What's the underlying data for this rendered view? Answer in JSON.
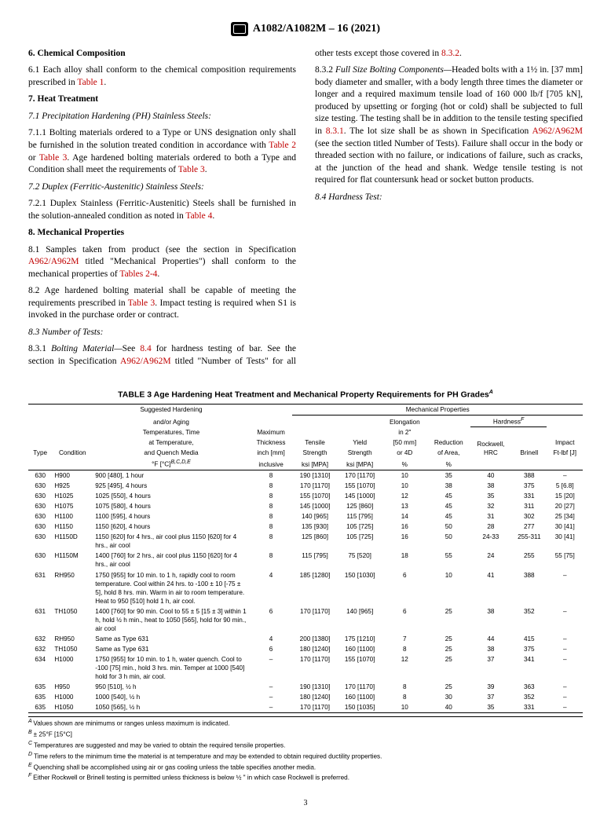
{
  "header": {
    "spec": "A1082/A1082M – 16 (2021)"
  },
  "sec6": {
    "title": "6.  Chemical Composition",
    "p1a": "6.1  Each alloy shall conform to the chemical composition requirements prescribed in ",
    "p1link": "Table 1",
    "p1b": "."
  },
  "sec7": {
    "title": "7.  Heat Treatment",
    "s71t": "7.1  Precipitation Hardening (PH) Stainless Steels:",
    "s711a": "7.1.1  Bolting materials ordered to a Type or UNS designation only shall be furnished in the solution treated condition in accordance with ",
    "s711l1": "Table 2",
    "s711m": " or ",
    "s711l2": "Table 3",
    "s711b": ". Age hardened bolting materials ordered to both a Type and Condition shall meet the requirements of ",
    "s711l3": "Table 3",
    "s711c": ".",
    "s72t": "7.2  Duplex (Ferritic-Austenitic) Stainless Steels:",
    "s721a": "7.2.1  Duplex Stainless (Ferritic-Austenitic) Steels shall be furnished in the solution-annealed condition as noted in ",
    "s721l": "Table 4",
    "s721b": "."
  },
  "sec8": {
    "title": "8.  Mechanical Properties",
    "s81a": "8.1  Samples taken from product (see the section in Specification ",
    "s81l1": "A962/A962M",
    "s81b": " titled \"Mechanical Properties\") shall conform to the mechanical properties of ",
    "s81l2": "Tables 2-4",
    "s81c": ".",
    "s82a": "8.2  Age hardened bolting material shall be capable of meeting the requirements prescribed in ",
    "s82l": "Table 3",
    "s82b": ". Impact testing is required when S1 is invoked in the purchase order or contract.",
    "s83t": "8.3  Number of Tests:",
    "s831a": "8.3.1  ",
    "s831i": "Bolting Material—",
    "s831b": "See ",
    "s831l1": "8.4",
    "s831c": " for hardness testing of bar. See the section in Specification ",
    "s831l2": "A962/A962M",
    "s831d": " titled \"Number of Tests\" for all other tests except those covered in ",
    "s831l3": "8.3.2",
    "s831e": ".",
    "s832a": "8.3.2  ",
    "s832i": "Full Size Bolting Components—",
    "s832b": "Headed bolts with a 1½ in. [37 mm] body diameter and smaller, with a body length three times the diameter or longer and a required maximum tensile load of 160 000 lb/f [705 kN], produced by upsetting or forging (hot or cold) shall be subjected to full size testing. The testing shall be in addition to the tensile testing specified in ",
    "s832l1": "8.3.1",
    "s832c": ". The lot size shall be as shown in Specification ",
    "s832l2": "A962/A962M",
    "s832d": " (see the section titled Number of Tests). Failure shall occur in the body or threaded section with no failure, or indications of failure, such as cracks, at the junction of the head and shank. Wedge tensile testing is not required for flat countersunk head or socket button products.",
    "s84t": "8.4  Hardness Test:"
  },
  "table": {
    "title": "TABLE 3 Age Hardening Heat Treatment and Mechanical Property Requirements for PH Grades",
    "titlesup": "A",
    "head": {
      "type": "Type",
      "cond": "Condition",
      "sugg1": "Suggested Hardening",
      "sugg2": "and/or Aging",
      "sugg3": "Temperatures, Time",
      "sugg4": "at Temperature,",
      "sugg5": "and Quench Media",
      "sugg6": "°F [°C]",
      "suggsup": "B,C,D,E",
      "thk1": "Maximum",
      "thk2": "Thickness",
      "thk3": "inch [mm]",
      "thk4": "inclusive",
      "mp": "Mechanical Properties",
      "ts1": "Tensile",
      "ts2": "Strength",
      "ts3": "ksi [MPA]",
      "ys1": "Yield",
      "ys2": "Strength",
      "ys3": "ksi [MPA]",
      "el1": "Elongation",
      "el2": "in 2\"",
      "el3": "[50 mm]",
      "el4": "or 4D",
      "el5": "%",
      "ra1": "Reduction",
      "ra2": "of Area,",
      "ra3": "%",
      "hd": "Hardness",
      "hdsup": "F",
      "hrc1": "Rockwell,",
      "hrc2": "HRC",
      "brn": "Brinell",
      "imp1": "Impact",
      "imp2": "Ft-lbf [J]"
    },
    "rows": [
      {
        "t": "630",
        "c": "H900",
        "p": "900 [480], 1 hour",
        "th": "8",
        "ts": "190 [1310]",
        "ys": "170 [1170]",
        "el": "10",
        "ra": "35",
        "hr": "40",
        "br": "388",
        "im": "–"
      },
      {
        "t": "630",
        "c": "H925",
        "p": "925 [495], 4 hours",
        "th": "8",
        "ts": "170 [1170]",
        "ys": "155 [1070]",
        "el": "10",
        "ra": "38",
        "hr": "38",
        "br": "375",
        "im": "5 [6.8]"
      },
      {
        "t": "630",
        "c": "H1025",
        "p": "1025 [550], 4 hours",
        "th": "8",
        "ts": "155 [1070]",
        "ys": "145 [1000]",
        "el": "12",
        "ra": "45",
        "hr": "35",
        "br": "331",
        "im": "15 [20]"
      },
      {
        "t": "630",
        "c": "H1075",
        "p": "1075 [580], 4 hours",
        "th": "8",
        "ts": "145 [1000]",
        "ys": "125 [860]",
        "el": "13",
        "ra": "45",
        "hr": "32",
        "br": "311",
        "im": "20 [27]"
      },
      {
        "t": "630",
        "c": "H1100",
        "p": "1100 [595], 4 hours",
        "th": "8",
        "ts": "140 [965]",
        "ys": "115 [795]",
        "el": "14",
        "ra": "45",
        "hr": "31",
        "br": "302",
        "im": "25 [34]"
      },
      {
        "t": "630",
        "c": "H1150",
        "p": "1150 [620], 4 hours",
        "th": "8",
        "ts": "135 [930]",
        "ys": "105 [725]",
        "el": "16",
        "ra": "50",
        "hr": "28",
        "br": "277",
        "im": "30 [41]"
      },
      {
        "t": "630",
        "c": "H1150D",
        "p": "1150 [620] for 4 hrs., air cool plus 1150 [620] for 4 hrs., air cool",
        "th": "8",
        "ts": "125 [860]",
        "ys": "105 [725]",
        "el": "16",
        "ra": "50",
        "hr": "24-33",
        "br": "255-311",
        "im": "30 [41]"
      },
      {
        "t": "630",
        "c": "H1150M",
        "p": "1400 [760] for 2 hrs., air cool plus 1150 [620] for 4 hrs., air cool",
        "th": "8",
        "ts": "115 [795]",
        "ys": "75 [520]",
        "el": "18",
        "ra": "55",
        "hr": "24",
        "br": "255",
        "im": "55 [75]"
      },
      {
        "t": "631",
        "c": "RH950",
        "p": "1750 [955] for 10 min. to 1 h, rapidly cool to room temperature. Cool within 24 hrs. to -100 ± 10 [-75 ± 5], hold 8 hrs. min. Warm in air to room temperature. Heat to 950 [510] hold 1 h, air cool.",
        "th": "4",
        "ts": "185 [1280]",
        "ys": "150 [1030]",
        "el": "6",
        "ra": "10",
        "hr": "41",
        "br": "388",
        "im": "–"
      },
      {
        "t": "631",
        "c": "TH1050",
        "p": "1400 [760] for 90 min. Cool to 55 ± 5 [15 ± 3] within 1 h, hold ½ h min., heat to 1050 [565], hold for 90 min., air cool",
        "th": "6",
        "ts": "170 [1170]",
        "ys": "140 [965]",
        "el": "6",
        "ra": "25",
        "hr": "38",
        "br": "352",
        "im": "–"
      },
      {
        "t": "632",
        "c": "RH950",
        "p": "Same as Type 631",
        "th": "4",
        "ts": "200 [1380]",
        "ys": "175 [1210]",
        "el": "7",
        "ra": "25",
        "hr": "44",
        "br": "415",
        "im": "–"
      },
      {
        "t": "632",
        "c": "TH1050",
        "p": "Same as Type 631",
        "th": "6",
        "ts": "180 [1240]",
        "ys": "160 [1100]",
        "el": "8",
        "ra": "25",
        "hr": "38",
        "br": "375",
        "im": "–"
      },
      {
        "t": "634",
        "c": "H1000",
        "p": "1750 [955] for 10 min. to 1 h, water quench. Cool to -100 [75] min., hold 3 hrs. min. Temper at 1000 [540] hold for 3 h min, air cool.",
        "th": "–",
        "ts": "170 [1170]",
        "ys": "155 [1070]",
        "el": "12",
        "ra": "25",
        "hr": "37",
        "br": "341",
        "im": "–"
      },
      {
        "t": "635",
        "c": "H950",
        "p": "950 [510], ½ h",
        "th": "–",
        "ts": "190 [1310]",
        "ys": "170 [1170]",
        "el": "8",
        "ra": "25",
        "hr": "39",
        "br": "363",
        "im": "–"
      },
      {
        "t": "635",
        "c": "H1000",
        "p": "1000 [540], ½ h",
        "th": "–",
        "ts": "180 [1240]",
        "ys": "160 [1100]",
        "el": "8",
        "ra": "30",
        "hr": "37",
        "br": "352",
        "im": "–"
      },
      {
        "t": "635",
        "c": "H1050",
        "p": "1050 [565], ½ h",
        "th": "–",
        "ts": "170 [1170]",
        "ys": "150 [1035]",
        "el": "10",
        "ra": "40",
        "hr": "35",
        "br": "331",
        "im": "–"
      }
    ],
    "notes": {
      "A": "Values shown are minimums or ranges unless maximum is indicated.",
      "B": "± 25°F [15°C]",
      "C": "Temperatures are suggested and may be varied to obtain the required tensile properties.",
      "D": "Time refers to the minimum time the material is at temperature and may be extended to obtain required ductility properties.",
      "E": "Quenching shall be accomplished using air or gas cooling unless the table specifies another media.",
      "F": "Either Rockwell or Brinell testing is permitted unless thickness is below ½ \" in which case Rockwell is preferred."
    }
  },
  "page": "3"
}
